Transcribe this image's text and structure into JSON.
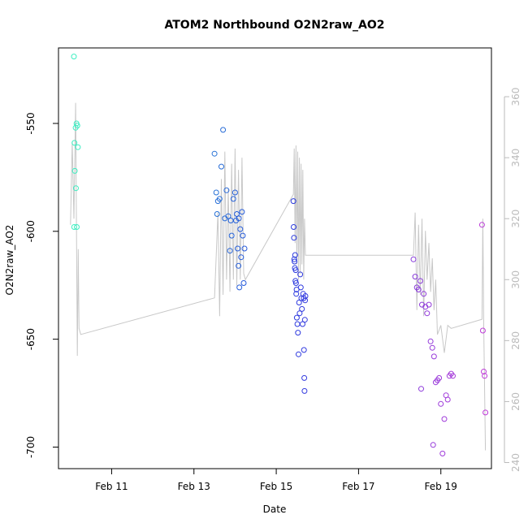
{
  "chart_data": {
    "type": "scatter",
    "title": "ATOM2 Northbound O2N2raw_AO2",
    "xlabel": "Date",
    "ylabel": "O2N2raw_AO2",
    "x_range_days": [
      "2012-02-09T17:00",
      "2012-02-20T05:30"
    ],
    "ylim": [
      -710,
      -515
    ],
    "y2lim": [
      238,
      376
    ],
    "x_ticks": [
      {
        "value": "2012-02-11",
        "label": "Feb 11"
      },
      {
        "value": "2012-02-13",
        "label": "Feb 13"
      },
      {
        "value": "2012-02-15",
        "label": "Feb 15"
      },
      {
        "value": "2012-02-17",
        "label": "Feb 17"
      },
      {
        "value": "2012-02-19",
        "label": "Feb 19"
      }
    ],
    "y_ticks": [
      -550,
      -600,
      -650,
      -700
    ],
    "y2_ticks": [
      360,
      340,
      320,
      300,
      280,
      260,
      240
    ],
    "grid": false,
    "legend": "none",
    "colors": {
      "points_start": "#3ef2c0",
      "points_mid": "#1f3ae0",
      "points_end": "#c03ad8",
      "secondary_line": "#c8c8c8",
      "secondary_axis": "#bbbbbb"
    },
    "series": [
      {
        "axis": "left",
        "kind": "points",
        "points": [
          [
            "2012-02-10T02:00",
            -519
          ],
          [
            "2012-02-10T02:20",
            -559
          ],
          [
            "2012-02-10T02:30",
            -572
          ],
          [
            "2012-02-10T02:10",
            -598
          ],
          [
            "2012-02-10T03:00",
            -552
          ],
          [
            "2012-02-10T03:30",
            -550
          ],
          [
            "2012-02-10T04:00",
            -551
          ],
          [
            "2012-02-10T04:20",
            -561
          ],
          [
            "2012-02-10T03:10",
            -580
          ],
          [
            "2012-02-10T03:40",
            -598
          ],
          [
            "2012-02-13T12:00",
            -564
          ],
          [
            "2012-02-13T13:00",
            -582
          ],
          [
            "2012-02-13T14:00",
            -586
          ],
          [
            "2012-02-13T15:00",
            -585
          ],
          [
            "2012-02-13T13:30",
            -592
          ],
          [
            "2012-02-13T16:00",
            -570
          ],
          [
            "2012-02-13T17:00",
            -553
          ],
          [
            "2012-02-13T18:00",
            -594
          ],
          [
            "2012-02-13T19:00",
            -581
          ],
          [
            "2012-02-13T20:00",
            -593
          ],
          [
            "2012-02-13T21:00",
            -609
          ],
          [
            "2012-02-13T22:00",
            -602
          ],
          [
            "2012-02-13T23:00",
            -585
          ],
          [
            "2012-02-14T00:00",
            -582
          ],
          [
            "2012-02-14T00:30",
            -595
          ],
          [
            "2012-02-14T01:00",
            -592
          ],
          [
            "2012-02-14T01:30",
            -608
          ],
          [
            "2012-02-14T02:00",
            -616
          ],
          [
            "2012-02-14T02:30",
            -626
          ],
          [
            "2012-02-14T03:00",
            -599
          ],
          [
            "2012-02-14T03:30",
            -612
          ],
          [
            "2012-02-14T04:00",
            -591
          ],
          [
            "2012-02-14T04:30",
            -602
          ],
          [
            "2012-02-14T05:00",
            -624
          ],
          [
            "2012-02-14T05:30",
            -608
          ],
          [
            "2012-02-13T21:30",
            -595
          ],
          [
            "2012-02-14T02:10",
            -594
          ],
          [
            "2012-02-15T10:00",
            -586
          ],
          [
            "2012-02-15T10:10",
            -598
          ],
          [
            "2012-02-15T10:20",
            -603
          ],
          [
            "2012-02-15T10:30",
            -613
          ],
          [
            "2012-02-15T10:40",
            -614
          ],
          [
            "2012-02-15T10:50",
            -617
          ],
          [
            "2012-02-15T11:00",
            -611
          ],
          [
            "2012-02-15T11:10",
            -623
          ],
          [
            "2012-02-15T11:20",
            -618
          ],
          [
            "2012-02-15T11:30",
            -624
          ],
          [
            "2012-02-15T11:40",
            -629
          ],
          [
            "2012-02-15T11:50",
            -627
          ],
          [
            "2012-02-15T12:00",
            -640
          ],
          [
            "2012-02-15T12:20",
            -643
          ],
          [
            "2012-02-15T12:40",
            -647
          ],
          [
            "2012-02-15T13:00",
            -657
          ],
          [
            "2012-02-15T13:20",
            -633
          ],
          [
            "2012-02-15T13:40",
            -638
          ],
          [
            "2012-02-15T14:00",
            -620
          ],
          [
            "2012-02-15T14:20",
            -626
          ],
          [
            "2012-02-15T14:40",
            -631
          ],
          [
            "2012-02-15T15:00",
            -636
          ],
          [
            "2012-02-15T15:20",
            -643
          ],
          [
            "2012-02-15T15:40",
            -629
          ],
          [
            "2012-02-15T16:00",
            -631
          ],
          [
            "2012-02-15T16:10",
            -655
          ],
          [
            "2012-02-15T16:20",
            -668
          ],
          [
            "2012-02-15T16:30",
            -674
          ],
          [
            "2012-02-15T16:40",
            -641
          ],
          [
            "2012-02-15T16:50",
            -632
          ],
          [
            "2012-02-15T17:00",
            -630
          ],
          [
            "2012-02-18T08:00",
            -613
          ],
          [
            "2012-02-18T09:00",
            -621
          ],
          [
            "2012-02-18T10:00",
            -626
          ],
          [
            "2012-02-18T11:00",
            -627
          ],
          [
            "2012-02-18T12:00",
            -623
          ],
          [
            "2012-02-18T13:00",
            -634
          ],
          [
            "2012-02-18T14:00",
            -629
          ],
          [
            "2012-02-18T15:00",
            -635
          ],
          [
            "2012-02-18T16:00",
            -638
          ],
          [
            "2012-02-18T17:00",
            -634
          ],
          [
            "2012-02-18T18:00",
            -651
          ],
          [
            "2012-02-18T19:00",
            -654
          ],
          [
            "2012-02-18T20:00",
            -658
          ],
          [
            "2012-02-18T21:00",
            -670
          ],
          [
            "2012-02-18T22:00",
            -669
          ],
          [
            "2012-02-18T23:00",
            -668
          ],
          [
            "2012-02-18T12:30",
            -673
          ],
          [
            "2012-02-18T19:30",
            -699
          ],
          [
            "2012-02-19T00:00",
            -680
          ],
          [
            "2012-02-19T01:00",
            -703
          ],
          [
            "2012-02-19T02:00",
            -687
          ],
          [
            "2012-02-19T03:00",
            -676
          ],
          [
            "2012-02-19T04:00",
            -678
          ],
          [
            "2012-02-19T05:00",
            -667
          ],
          [
            "2012-02-19T06:00",
            -666
          ],
          [
            "2012-02-19T07:00",
            -667
          ],
          [
            "2012-02-20T00:00",
            -597
          ],
          [
            "2012-02-20T00:30",
            -646
          ],
          [
            "2012-02-20T01:00",
            -665
          ],
          [
            "2012-02-20T01:30",
            -667
          ],
          [
            "2012-02-20T02:00",
            -684
          ]
        ]
      },
      {
        "axis": "right",
        "kind": "line",
        "points": [
          [
            "2012-02-10T00:00",
            318
          ],
          [
            "2012-02-10T01:00",
            345
          ],
          [
            "2012-02-10T02:00",
            320
          ],
          [
            "2012-02-10T03:00",
            358
          ],
          [
            "2012-02-10T04:00",
            275
          ],
          [
            "2012-02-10T04:30",
            310
          ],
          [
            "2012-02-10T05:00",
            284
          ],
          [
            "2012-02-10T06:00",
            282
          ],
          [
            "2012-02-13T12:00",
            294
          ],
          [
            "2012-02-13T14:00",
            322
          ],
          [
            "2012-02-13T15:00",
            288
          ],
          [
            "2012-02-13T16:00",
            333
          ],
          [
            "2012-02-13T17:00",
            295
          ],
          [
            "2012-02-13T18:00",
            342
          ],
          [
            "2012-02-13T19:00",
            300
          ],
          [
            "2012-02-13T20:00",
            330
          ],
          [
            "2012-02-13T21:00",
            296
          ],
          [
            "2012-02-13T22:00",
            338
          ],
          [
            "2012-02-13T23:00",
            300
          ],
          [
            "2012-02-14T00:00",
            343
          ],
          [
            "2012-02-14T01:00",
            298
          ],
          [
            "2012-02-14T02:00",
            336
          ],
          [
            "2012-02-14T03:00",
            300
          ],
          [
            "2012-02-14T04:00",
            340
          ],
          [
            "2012-02-14T05:00",
            302
          ],
          [
            "2012-02-14T06:00",
            300
          ],
          [
            "2012-02-15T10:00",
            328
          ],
          [
            "2012-02-15T10:30",
            343
          ],
          [
            "2012-02-15T11:00",
            312
          ],
          [
            "2012-02-15T11:30",
            344
          ],
          [
            "2012-02-15T12:00",
            305
          ],
          [
            "2012-02-15T12:30",
            342
          ],
          [
            "2012-02-15T13:00",
            300
          ],
          [
            "2012-02-15T13:30",
            340
          ],
          [
            "2012-02-15T14:00",
            302
          ],
          [
            "2012-02-15T14:30",
            338
          ],
          [
            "2012-02-15T15:00",
            305
          ],
          [
            "2012-02-15T15:30",
            336
          ],
          [
            "2012-02-15T16:00",
            300
          ],
          [
            "2012-02-15T16:30",
            320
          ],
          [
            "2012-02-15T17:00",
            308
          ],
          [
            "2012-02-18T08:00",
            308
          ],
          [
            "2012-02-18T09:00",
            322
          ],
          [
            "2012-02-18T10:00",
            290
          ],
          [
            "2012-02-18T11:00",
            318
          ],
          [
            "2012-02-18T12:00",
            295
          ],
          [
            "2012-02-18T13:00",
            320
          ],
          [
            "2012-02-18T14:00",
            288
          ],
          [
            "2012-02-18T15:00",
            316
          ],
          [
            "2012-02-18T16:00",
            300
          ],
          [
            "2012-02-18T17:00",
            312
          ],
          [
            "2012-02-18T18:00",
            296
          ],
          [
            "2012-02-18T19:00",
            307
          ],
          [
            "2012-02-18T20:00",
            290
          ],
          [
            "2012-02-18T21:00",
            300
          ],
          [
            "2012-02-18T22:00",
            282
          ],
          [
            "2012-02-19T00:00",
            285
          ],
          [
            "2012-02-19T02:00",
            276
          ],
          [
            "2012-02-19T04:00",
            285
          ],
          [
            "2012-02-19T06:00",
            284
          ],
          [
            "2012-02-20T00:00",
            287
          ],
          [
            "2012-02-20T00:30",
            320
          ],
          [
            "2012-02-20T01:00",
            285
          ],
          [
            "2012-02-20T02:00",
            244
          ]
        ]
      }
    ]
  }
}
